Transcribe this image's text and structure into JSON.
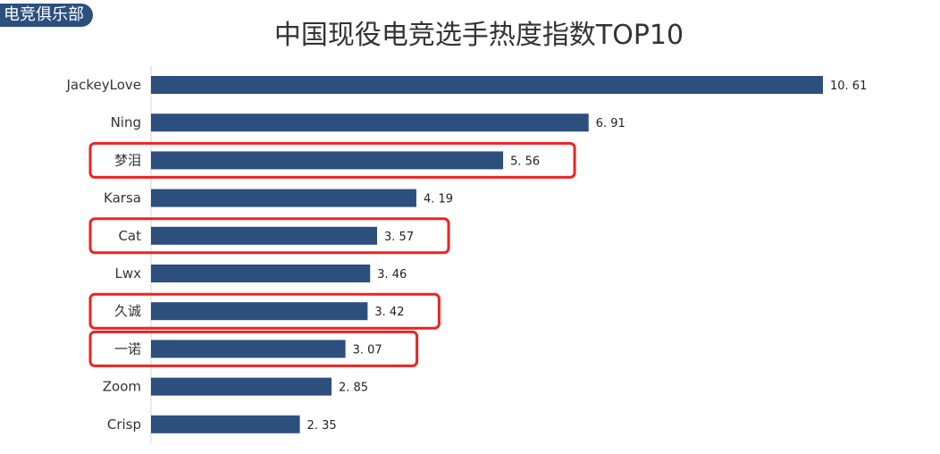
{
  "header": {
    "badge": "电竞俱乐部",
    "title": "中国现役电竞选手热度指数TOP10"
  },
  "colors": {
    "bar": "#2c4f7e",
    "highlight_box": "#ee2222",
    "axis": "#e3e3e3"
  },
  "chart_data": {
    "type": "bar",
    "orientation": "horizontal",
    "title": "中国现役电竞选手热度指数TOP10",
    "categories": [
      "JackeyLove",
      "Ning",
      "梦泪",
      "Karsa",
      "Cat",
      "Lwx",
      "久诚",
      "一诺",
      "Zoom",
      "Crisp"
    ],
    "values": [
      10.61,
      6.91,
      5.56,
      4.19,
      3.57,
      3.46,
      3.42,
      3.07,
      2.85,
      2.35
    ],
    "value_labels": [
      "10. 61",
      "6. 91",
      "5. 56",
      "4. 19",
      "3. 57",
      "3. 46",
      "3. 42",
      "3. 07",
      "2. 85",
      "2. 35"
    ],
    "highlighted": [
      "梦泪",
      "Cat",
      "久诚",
      "一诺"
    ],
    "xlim": [
      0,
      10.61
    ],
    "grid": false,
    "legend": "none"
  }
}
